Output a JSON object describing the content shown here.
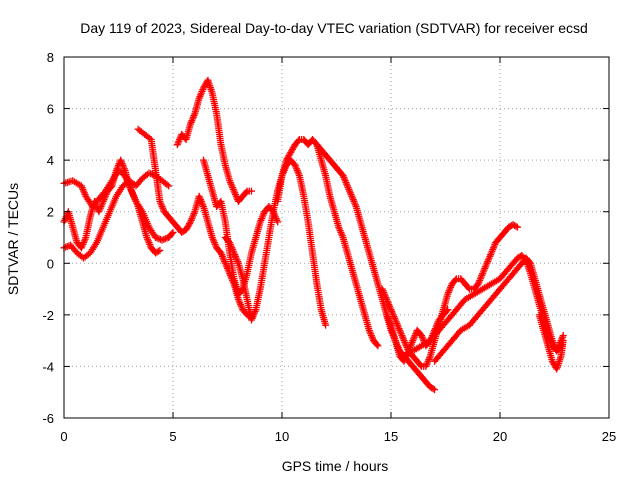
{
  "chart_data": {
    "type": "scatter",
    "title": "Day 119 of 2023, Sidereal Day-to-day VTEC variation (SDTVAR) for receiver ecsd",
    "xlabel": "GPS time / hours",
    "ylabel": "SDTVAR / TECUs",
    "xlim": [
      0,
      25
    ],
    "ylim": [
      -6,
      8
    ],
    "x_ticks": [
      0,
      5,
      10,
      15,
      20,
      25
    ],
    "y_ticks": [
      -6,
      -4,
      -2,
      0,
      2,
      4,
      6,
      8
    ],
    "grid": true,
    "marker": "+",
    "color": "#ff0000",
    "series": [
      {
        "x": [
          0.0,
          0.4,
          0.8,
          1.0,
          1.3,
          1.6,
          1.9,
          2.2,
          2.5,
          2.8,
          3.0,
          3.3,
          3.6,
          3.9,
          4.2,
          4.5,
          4.8,
          5.0
        ],
        "y": [
          3.1,
          3.2,
          3.0,
          2.6,
          2.2,
          2.5,
          2.8,
          3.2,
          3.6,
          3.4,
          3.0,
          2.4,
          2.0,
          1.4,
          1.0,
          0.9,
          1.0,
          1.2
        ]
      },
      {
        "x": [
          0.0,
          0.2,
          0.4,
          0.6,
          0.8,
          1.0,
          1.2,
          1.4,
          1.6,
          1.8,
          2.0,
          2.2,
          2.4,
          2.6,
          2.8,
          3.0,
          3.2,
          3.4,
          3.6,
          3.8,
          4.0,
          4.2,
          4.4
        ],
        "y": [
          1.6,
          2.0,
          1.4,
          0.8,
          0.6,
          1.0,
          1.8,
          2.4,
          2.0,
          2.4,
          2.8,
          3.0,
          3.6,
          4.0,
          3.6,
          3.0,
          2.6,
          2.2,
          1.6,
          1.0,
          0.6,
          0.4,
          0.5
        ]
      },
      {
        "x": [
          0.0,
          0.3,
          0.6,
          0.9,
          1.2,
          1.5,
          1.8,
          2.1,
          2.4,
          2.7,
          3.0,
          3.3,
          3.6,
          3.9,
          4.2,
          4.5,
          4.8
        ],
        "y": [
          0.6,
          0.7,
          0.4,
          0.2,
          0.4,
          0.8,
          1.4,
          2.0,
          2.6,
          3.0,
          3.2,
          3.0,
          3.3,
          3.5,
          3.4,
          3.2,
          3.0
        ]
      },
      {
        "x": [
          3.4,
          3.7,
          4.0,
          4.2,
          4.4,
          4.6,
          4.8,
          5.0,
          5.2,
          5.4,
          5.6,
          5.8,
          6.0,
          6.2,
          6.4,
          6.6,
          6.8,
          7.0,
          7.2,
          7.4,
          7.6,
          7.8,
          8.0,
          8.2,
          8.4,
          8.6
        ],
        "y": [
          5.2,
          5.0,
          4.8,
          3.6,
          2.4,
          2.0,
          1.8,
          1.6,
          1.4,
          1.2,
          1.3,
          1.6,
          2.0,
          2.6,
          2.2,
          1.6,
          1.0,
          0.6,
          0.4,
          0.0,
          -0.4,
          -0.8,
          -1.4,
          -1.8,
          -2.0,
          -2.1
        ]
      },
      {
        "x": [
          5.2,
          5.4,
          5.6,
          5.8,
          6.0,
          6.2,
          6.4,
          6.6,
          6.8,
          7.0,
          7.2,
          7.4,
          7.6,
          7.8,
          8.0,
          8.2,
          8.4,
          8.6
        ],
        "y": [
          4.6,
          5.0,
          4.8,
          5.4,
          5.8,
          6.4,
          6.8,
          7.1,
          6.6,
          5.8,
          4.6,
          3.8,
          3.2,
          2.8,
          2.4,
          2.6,
          2.8,
          2.8
        ]
      },
      {
        "x": [
          6.4,
          6.6,
          6.8,
          7.0,
          7.2,
          7.4,
          7.6,
          7.8,
          8.0,
          8.2,
          8.4,
          8.6,
          8.8,
          9.0,
          9.2,
          9.4,
          9.6,
          9.8
        ],
        "y": [
          4.0,
          3.4,
          2.8,
          2.2,
          2.4,
          1.6,
          0.4,
          -0.6,
          -1.2,
          -1.0,
          -0.4,
          0.4,
          1.0,
          1.6,
          2.0,
          2.2,
          2.0,
          1.6
        ]
      },
      {
        "x": [
          7.4,
          7.6,
          7.8,
          8.0,
          8.2,
          8.4,
          8.6,
          8.8,
          9.0,
          9.2,
          9.4,
          9.6,
          9.8,
          10.0,
          10.2,
          10.4,
          10.6,
          10.8,
          11.0,
          11.2,
          11.4,
          11.6,
          11.8,
          12.0
        ],
        "y": [
          1.0,
          0.8,
          0.4,
          0.0,
          -0.6,
          -1.4,
          -2.2,
          -1.8,
          -1.0,
          0.0,
          1.0,
          2.0,
          2.8,
          3.4,
          3.8,
          4.0,
          3.8,
          3.4,
          2.6,
          1.6,
          0.4,
          -0.8,
          -1.8,
          -2.4
        ]
      },
      {
        "x": [
          9.8,
          10.0,
          10.2,
          10.4,
          10.6,
          10.8,
          11.0,
          11.2,
          11.4,
          11.6,
          11.8,
          12.0,
          12.2,
          12.4,
          12.6,
          12.8,
          13.0,
          13.2,
          13.4,
          13.6,
          13.8,
          14.0,
          14.2,
          14.4
        ],
        "y": [
          2.4,
          3.4,
          4.0,
          4.3,
          4.6,
          4.8,
          4.8,
          4.6,
          4.8,
          4.6,
          4.0,
          3.4,
          2.6,
          2.0,
          1.4,
          1.0,
          0.4,
          -0.2,
          -0.8,
          -1.4,
          -2.0,
          -2.6,
          -3.0,
          -3.2
        ]
      },
      {
        "x": [
          11.6,
          11.8,
          12.0,
          12.2,
          12.4,
          12.6,
          12.8,
          13.0,
          13.2,
          13.4,
          13.6,
          13.8,
          14.0,
          14.2,
          14.4,
          14.6,
          14.8,
          15.0,
          15.2,
          15.4,
          15.6,
          15.8,
          16.0,
          16.2,
          16.4,
          16.6,
          16.8,
          17.0
        ],
        "y": [
          4.6,
          4.4,
          4.2,
          4.0,
          3.8,
          3.6,
          3.4,
          3.0,
          2.6,
          2.2,
          1.6,
          1.0,
          0.4,
          -0.2,
          -0.8,
          -1.4,
          -2.0,
          -2.6,
          -3.0,
          -3.4,
          -3.6,
          -3.8,
          -4.0,
          -4.2,
          -4.4,
          -4.6,
          -4.8,
          -4.9
        ]
      },
      {
        "x": [
          14.6,
          14.8,
          15.0,
          15.2,
          15.4,
          15.6,
          15.8,
          16.0,
          16.2,
          16.4,
          16.6,
          16.8,
          17.0,
          17.2,
          17.4,
          17.6,
          17.8,
          18.0,
          18.2,
          18.4,
          18.6,
          18.8,
          19.0,
          19.2,
          19.4,
          19.6,
          19.8,
          20.0,
          20.2,
          20.4,
          20.6,
          20.8
        ],
        "y": [
          -1.0,
          -1.4,
          -1.8,
          -2.2,
          -2.6,
          -3.0,
          -3.4,
          -3.6,
          -3.8,
          -4.0,
          -4.0,
          -3.6,
          -3.0,
          -2.4,
          -1.8,
          -1.2,
          -0.8,
          -0.6,
          -0.6,
          -0.8,
          -1.0,
          -1.0,
          -0.8,
          -0.4,
          0.0,
          0.4,
          0.8,
          1.0,
          1.2,
          1.4,
          1.5,
          1.4
        ]
      },
      {
        "x": [
          16.0,
          16.4,
          16.8,
          17.2,
          17.6,
          18.0,
          18.4,
          18.8,
          19.2,
          19.6,
          20.0,
          20.4,
          20.8,
          21.0,
          21.2,
          21.4,
          21.6,
          21.8,
          22.0,
          22.2,
          22.4,
          22.6,
          22.8
        ],
        "y": [
          -3.4,
          -3.2,
          -3.0,
          -2.6,
          -2.2,
          -1.8,
          -1.4,
          -1.2,
          -1.0,
          -0.8,
          -0.6,
          -0.2,
          0.2,
          0.3,
          0.1,
          -0.4,
          -1.0,
          -1.6,
          -2.2,
          -2.8,
          -3.2,
          -3.4,
          -3.2
        ]
      },
      {
        "x": [
          17.0,
          17.4,
          17.8,
          18.2,
          18.6,
          19.0,
          19.4,
          19.8,
          20.2,
          20.6,
          21.0,
          21.2,
          21.4,
          21.6,
          21.8,
          22.0,
          22.2,
          22.4,
          22.6,
          22.8,
          22.9
        ],
        "y": [
          -3.8,
          -3.4,
          -3.0,
          -2.6,
          -2.4,
          -2.0,
          -1.6,
          -1.2,
          -0.8,
          -0.4,
          0.0,
          0.2,
          0.0,
          -0.6,
          -1.2,
          -1.8,
          -2.4,
          -3.0,
          -3.4,
          -3.0,
          -2.8
        ]
      },
      {
        "x": [
          14.8,
          15.0,
          15.2,
          15.4,
          15.6,
          15.8,
          16.0,
          16.2,
          16.4,
          16.6,
          16.8,
          17.0,
          17.2,
          17.4,
          17.6
        ],
        "y": [
          -2.0,
          -2.4,
          -3.0,
          -3.6,
          -3.8,
          -3.4,
          -3.0,
          -2.6,
          -2.8,
          -3.2,
          -3.0,
          -2.6,
          -2.2,
          -2.0,
          -1.8
        ]
      },
      {
        "x": [
          21.8,
          22.0,
          22.2,
          22.4,
          22.6,
          22.8,
          22.9
        ],
        "y": [
          -2.0,
          -2.6,
          -3.2,
          -3.8,
          -4.1,
          -3.6,
          -3.0
        ]
      }
    ]
  }
}
